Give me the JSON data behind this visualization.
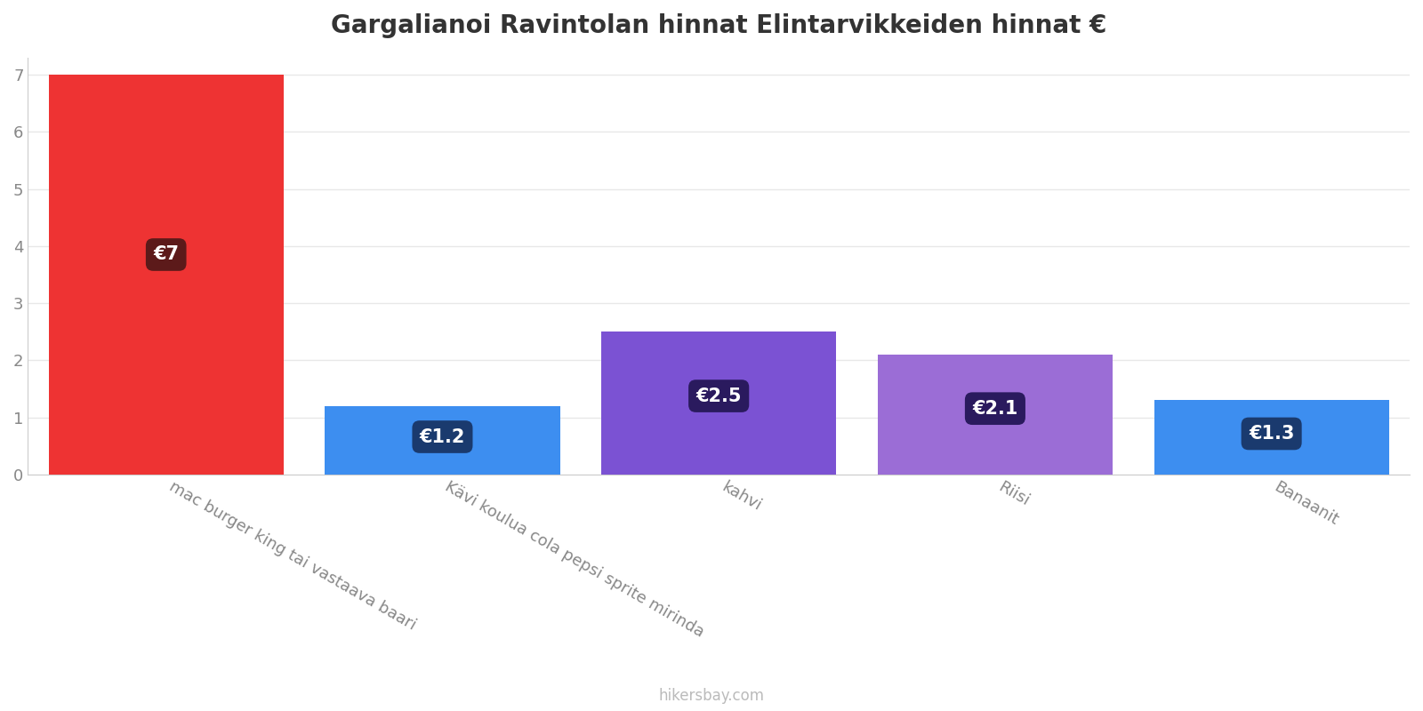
{
  "title": "Gargalianoi Ravintolan hinnat Elintarvikkeiden hinnat €",
  "categories": [
    "mac burger king tai vastaava baari",
    "Kävi koulua cola pepsi sprite mirinda",
    "kahvi",
    "Riisi",
    "Banaanit"
  ],
  "values": [
    7.0,
    1.2,
    2.5,
    2.1,
    1.3
  ],
  "bar_colors": [
    "#ee3333",
    "#3d8ef0",
    "#7b52d3",
    "#9b6dd6",
    "#3d8ef0"
  ],
  "label_bg_colors": [
    "#5c1a1a",
    "#1a3a6e",
    "#2a1a5e",
    "#2a1a5e",
    "#1a3a6e"
  ],
  "label_texts": [
    "€7",
    "€1.2",
    "€2.5",
    "€2.1",
    "€1.3"
  ],
  "ylim": [
    0,
    7.3
  ],
  "yticks": [
    0,
    1,
    2,
    3,
    4,
    5,
    6,
    7
  ],
  "background_color": "#ffffff",
  "title_fontsize": 20,
  "tick_label_fontsize": 13,
  "watermark": "hikersbay.com"
}
